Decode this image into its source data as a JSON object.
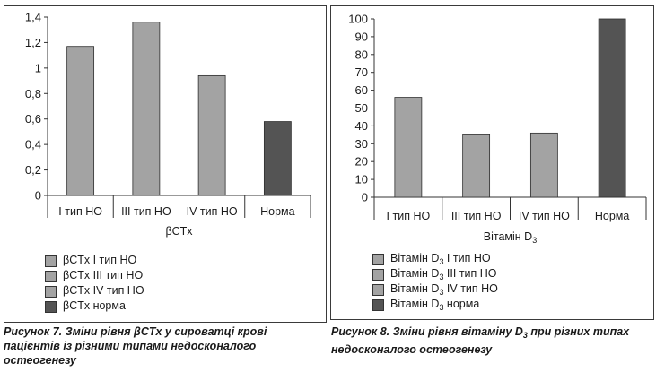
{
  "colors": {
    "light": "#a3a3a3",
    "dark": "#545454",
    "axis": "#333333"
  },
  "chart1": {
    "axis_title": "βCTx",
    "legend": [
      {
        "label": "βCTx   I тип НО",
        "color": "#a3a3a3"
      },
      {
        "label": "βCTx   III тип НО",
        "color": "#a3a3a3"
      },
      {
        "label": "βCTx IV тип НО",
        "color": "#a3a3a3"
      },
      {
        "label": "βCTx норма",
        "color": "#545454"
      }
    ]
  },
  "chart2": {
    "axis_title": "Вітамін D",
    "axis_title_sub": "3",
    "legend": [
      {
        "pre": "Вітамін D",
        "sub": "3",
        "post": " І тип НО",
        "color": "#a3a3a3"
      },
      {
        "pre": "Вітамін D",
        "sub": "3",
        "post": " ІІІ тип НО",
        "color": "#a3a3a3"
      },
      {
        "pre": "Вітамін D",
        "sub": "3",
        "post": " IV тип НО",
        "color": "#a3a3a3"
      },
      {
        "pre": "Вітамін D",
        "sub": "3",
        "post": " норма",
        "color": "#545454"
      }
    ]
  },
  "captions": {
    "fig7": "Рисунок 7. Зміни рівня βCTx у сироватці крові пацієнтів із різними типами недосконалого остеогенезу",
    "fig8_pre": "Рисунок 8. Зміни рівня вітаміну D",
    "fig8_sub": "3",
    "fig8_post": " при різних типах недосконалого остеогенезу"
  },
  "chart_data": [
    {
      "type": "bar",
      "title": "",
      "xlabel": "βCTx",
      "ylabel": "",
      "categories": [
        "І тип НО",
        "ІІІ тип НО",
        "IV тип НО",
        "Норма"
      ],
      "values": [
        1.17,
        1.36,
        0.94,
        0.58
      ],
      "colors": [
        "#a3a3a3",
        "#a3a3a3",
        "#a3a3a3",
        "#545454"
      ],
      "yticks": [
        "0",
        "0,2",
        "0,4",
        "0,6",
        "0,8",
        "1",
        "1,2",
        "1,4"
      ],
      "ylim": [
        0,
        1.4
      ],
      "ystep": 0.2,
      "grid": false
    },
    {
      "type": "bar",
      "title": "",
      "xlabel": "Вітамін D3",
      "ylabel": "",
      "categories": [
        "І тип НО",
        "ІІІ тип НО",
        "IV тип НО",
        "Норма"
      ],
      "values": [
        56,
        35,
        36,
        100
      ],
      "colors": [
        "#a3a3a3",
        "#a3a3a3",
        "#a3a3a3",
        "#545454"
      ],
      "yticks": [
        "0",
        "10",
        "20",
        "30",
        "40",
        "50",
        "60",
        "70",
        "80",
        "90",
        "100"
      ],
      "ylim": [
        0,
        100
      ],
      "ystep": 10,
      "grid": false
    }
  ]
}
